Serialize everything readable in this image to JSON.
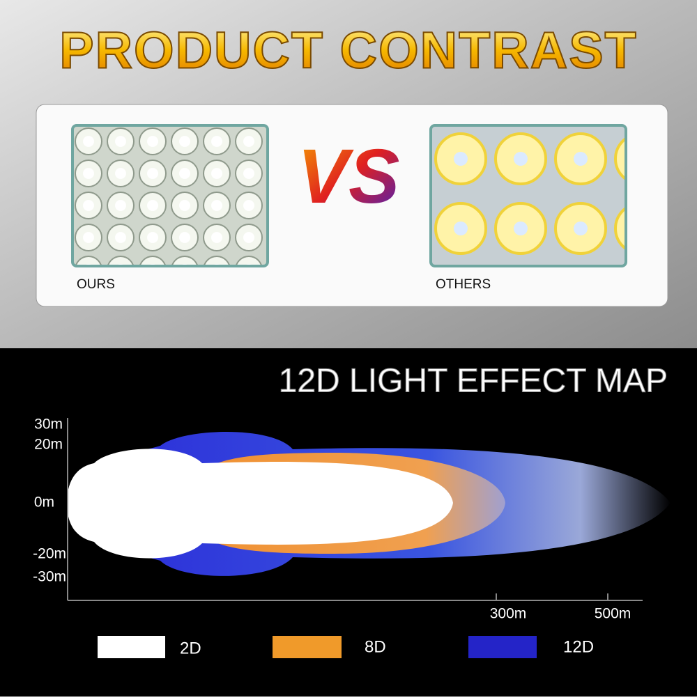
{
  "header": {
    "title": "PRODUCT CONTRAST"
  },
  "comparison": {
    "vs": "VS",
    "left": "OURS",
    "right": "OTHERS"
  },
  "map": {
    "title": "12D LIGHT EFFECT MAP",
    "y_labels": [
      "30m",
      "20m",
      "0m",
      "-20m",
      "-30m"
    ],
    "x_labels": [
      "300m",
      "500m"
    ]
  },
  "legend": [
    "2D",
    "8D",
    "12D"
  ]
}
